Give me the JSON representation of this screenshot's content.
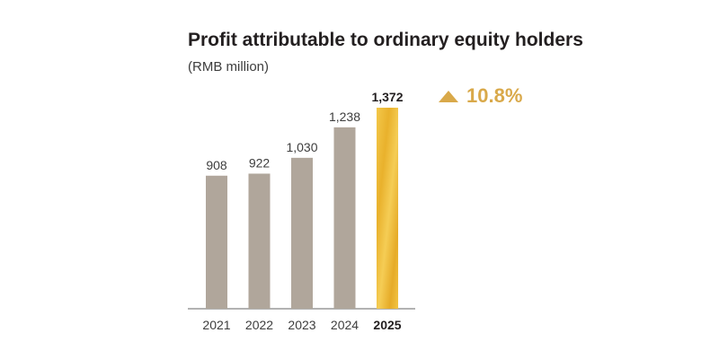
{
  "title": "Profit attributable to ordinary equity holders",
  "subtitle": "(RMB million)",
  "growth": {
    "value": "10.8%",
    "icon": "triangle-up-icon",
    "color": "#d9a94a"
  },
  "colors": {
    "bar": "#b0a69b",
    "highlight_bar": "#f0be37",
    "axis": "#666666",
    "text": "#3d3d3d",
    "highlight_text": "#231f20"
  },
  "chart_data": {
    "type": "bar",
    "categories": [
      "2021",
      "2022",
      "2023",
      "2024",
      "2025"
    ],
    "values": [
      908,
      922,
      1030,
      1238,
      1372
    ],
    "value_labels": [
      "908",
      "922",
      "1,030",
      "1,238",
      "1,372"
    ],
    "highlight_index": 4,
    "title": "Profit attributable to ordinary equity holders",
    "subtitle": "(RMB million)",
    "xlabel": "",
    "ylabel": "",
    "ylim": [
      0,
      1372
    ],
    "grid": false,
    "legend": "none"
  }
}
